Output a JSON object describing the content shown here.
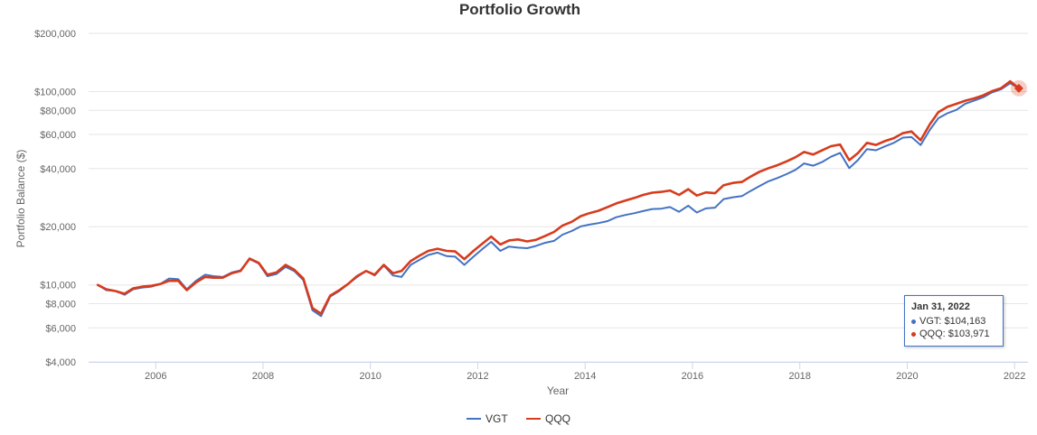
{
  "chart_data": {
    "type": "line",
    "title": "Portfolio Growth",
    "xlabel": "Year",
    "ylabel": "Portfolio Balance ($)",
    "y_scale": "log",
    "ylim": [
      4000,
      200000
    ],
    "xlim": [
      2004.75,
      2022.25
    ],
    "y_ticks": [
      {
        "value": 4000,
        "label": "$4,000"
      },
      {
        "value": 6000,
        "label": "$6,000"
      },
      {
        "value": 8000,
        "label": "$8,000"
      },
      {
        "value": 10000,
        "label": "$10,000"
      },
      {
        "value": 20000,
        "label": "$20,000"
      },
      {
        "value": 40000,
        "label": "$40,000"
      },
      {
        "value": 60000,
        "label": "$60,000"
      },
      {
        "value": 80000,
        "label": "$80,000"
      },
      {
        "value": 100000,
        "label": "$100,000"
      },
      {
        "value": 200000,
        "label": "$200,000"
      }
    ],
    "x_ticks": [
      {
        "value": 2006,
        "label": "2006"
      },
      {
        "value": 2008,
        "label": "2008"
      },
      {
        "value": 2010,
        "label": "2010"
      },
      {
        "value": 2012,
        "label": "2012"
      },
      {
        "value": 2014,
        "label": "2014"
      },
      {
        "value": 2016,
        "label": "2016"
      },
      {
        "value": 2018,
        "label": "2018"
      },
      {
        "value": 2020,
        "label": "2020"
      },
      {
        "value": 2022,
        "label": "2022"
      }
    ],
    "grid": true,
    "legend_position": "bottom",
    "series": [
      {
        "name": "VGT",
        "color": "#4472c4",
        "points": [
          [
            2004.92,
            10000
          ],
          [
            2005.08,
            9400
          ],
          [
            2005.25,
            9300
          ],
          [
            2005.42,
            8900
          ],
          [
            2005.58,
            9500
          ],
          [
            2005.75,
            9700
          ],
          [
            2005.92,
            9800
          ],
          [
            2006.08,
            10100
          ],
          [
            2006.25,
            10800
          ],
          [
            2006.42,
            10700
          ],
          [
            2006.58,
            9500
          ],
          [
            2006.75,
            10500
          ],
          [
            2006.92,
            11300
          ],
          [
            2007.08,
            11100
          ],
          [
            2007.25,
            11000
          ],
          [
            2007.42,
            11600
          ],
          [
            2007.58,
            11900
          ],
          [
            2007.75,
            13600
          ],
          [
            2007.92,
            12900
          ],
          [
            2008.08,
            11100
          ],
          [
            2008.25,
            11400
          ],
          [
            2008.42,
            12400
          ],
          [
            2008.58,
            11800
          ],
          [
            2008.75,
            10600
          ],
          [
            2008.92,
            7400
          ],
          [
            2009.08,
            6900
          ],
          [
            2009.25,
            8700
          ],
          [
            2009.42,
            9300
          ],
          [
            2009.58,
            10100
          ],
          [
            2009.75,
            11000
          ],
          [
            2009.92,
            11800
          ],
          [
            2010.08,
            11200
          ],
          [
            2010.25,
            12600
          ],
          [
            2010.42,
            11200
          ],
          [
            2010.58,
            11000
          ],
          [
            2010.75,
            12700
          ],
          [
            2010.92,
            13500
          ],
          [
            2011.08,
            14300
          ],
          [
            2011.25,
            14700
          ],
          [
            2011.42,
            14100
          ],
          [
            2011.58,
            14000
          ],
          [
            2011.75,
            12700
          ],
          [
            2011.92,
            14000
          ],
          [
            2012.08,
            15300
          ],
          [
            2012.25,
            16700
          ],
          [
            2012.42,
            15000
          ],
          [
            2012.58,
            15800
          ],
          [
            2012.75,
            15600
          ],
          [
            2012.92,
            15500
          ],
          [
            2013.08,
            15900
          ],
          [
            2013.25,
            16500
          ],
          [
            2013.42,
            16900
          ],
          [
            2013.58,
            18200
          ],
          [
            2013.75,
            19000
          ],
          [
            2013.92,
            20100
          ],
          [
            2014.08,
            20500
          ],
          [
            2014.25,
            20900
          ],
          [
            2014.42,
            21400
          ],
          [
            2014.58,
            22400
          ],
          [
            2014.75,
            23000
          ],
          [
            2014.92,
            23500
          ],
          [
            2015.08,
            24100
          ],
          [
            2015.25,
            24700
          ],
          [
            2015.42,
            24800
          ],
          [
            2015.58,
            25300
          ],
          [
            2015.75,
            23900
          ],
          [
            2015.92,
            25700
          ],
          [
            2016.08,
            23700
          ],
          [
            2016.25,
            24900
          ],
          [
            2016.42,
            25100
          ],
          [
            2016.58,
            27800
          ],
          [
            2016.75,
            28400
          ],
          [
            2016.92,
            28800
          ],
          [
            2017.08,
            30600
          ],
          [
            2017.25,
            32500
          ],
          [
            2017.42,
            34400
          ],
          [
            2017.58,
            35700
          ],
          [
            2017.75,
            37400
          ],
          [
            2017.92,
            39400
          ],
          [
            2018.08,
            42500
          ],
          [
            2018.25,
            41400
          ],
          [
            2018.42,
            43300
          ],
          [
            2018.58,
            46000
          ],
          [
            2018.75,
            48200
          ],
          [
            2018.92,
            40200
          ],
          [
            2019.08,
            44200
          ],
          [
            2019.25,
            50400
          ],
          [
            2019.42,
            49700
          ],
          [
            2019.58,
            52000
          ],
          [
            2019.75,
            54300
          ],
          [
            2019.92,
            57800
          ],
          [
            2020.08,
            58200
          ],
          [
            2020.25,
            52900
          ],
          [
            2020.42,
            63300
          ],
          [
            2020.58,
            72800
          ],
          [
            2020.75,
            77300
          ],
          [
            2020.92,
            80500
          ],
          [
            2021.08,
            86500
          ],
          [
            2021.25,
            89900
          ],
          [
            2021.42,
            93500
          ],
          [
            2021.58,
            99000
          ],
          [
            2021.75,
            102800
          ],
          [
            2021.92,
            110500
          ],
          [
            2022.08,
            104163
          ]
        ]
      },
      {
        "name": "QQQ",
        "color": "#d73b1c",
        "points": [
          [
            2004.92,
            10000
          ],
          [
            2005.08,
            9500
          ],
          [
            2005.25,
            9300
          ],
          [
            2005.42,
            9000
          ],
          [
            2005.58,
            9600
          ],
          [
            2005.75,
            9800
          ],
          [
            2005.92,
            9900
          ],
          [
            2006.08,
            10100
          ],
          [
            2006.25,
            10500
          ],
          [
            2006.42,
            10500
          ],
          [
            2006.58,
            9400
          ],
          [
            2006.75,
            10300
          ],
          [
            2006.92,
            11000
          ],
          [
            2007.08,
            10900
          ],
          [
            2007.25,
            10900
          ],
          [
            2007.42,
            11500
          ],
          [
            2007.58,
            11800
          ],
          [
            2007.75,
            13700
          ],
          [
            2007.92,
            13000
          ],
          [
            2008.08,
            11300
          ],
          [
            2008.25,
            11600
          ],
          [
            2008.42,
            12700
          ],
          [
            2008.58,
            12000
          ],
          [
            2008.75,
            10800
          ],
          [
            2008.92,
            7600
          ],
          [
            2009.08,
            7100
          ],
          [
            2009.25,
            8800
          ],
          [
            2009.42,
            9400
          ],
          [
            2009.58,
            10100
          ],
          [
            2009.75,
            11100
          ],
          [
            2009.92,
            11800
          ],
          [
            2010.08,
            11300
          ],
          [
            2010.25,
            12700
          ],
          [
            2010.42,
            11500
          ],
          [
            2010.58,
            11800
          ],
          [
            2010.75,
            13300
          ],
          [
            2010.92,
            14200
          ],
          [
            2011.08,
            15000
          ],
          [
            2011.25,
            15400
          ],
          [
            2011.42,
            15000
          ],
          [
            2011.58,
            14900
          ],
          [
            2011.75,
            13600
          ],
          [
            2011.92,
            15000
          ],
          [
            2012.08,
            16300
          ],
          [
            2012.25,
            17800
          ],
          [
            2012.42,
            16200
          ],
          [
            2012.58,
            17000
          ],
          [
            2012.75,
            17200
          ],
          [
            2012.92,
            16800
          ],
          [
            2013.08,
            17100
          ],
          [
            2013.25,
            17900
          ],
          [
            2013.42,
            18800
          ],
          [
            2013.58,
            20300
          ],
          [
            2013.75,
            21200
          ],
          [
            2013.92,
            22700
          ],
          [
            2014.08,
            23500
          ],
          [
            2014.25,
            24200
          ],
          [
            2014.42,
            25300
          ],
          [
            2014.58,
            26400
          ],
          [
            2014.75,
            27300
          ],
          [
            2014.92,
            28200
          ],
          [
            2015.08,
            29200
          ],
          [
            2015.25,
            30000
          ],
          [
            2015.42,
            30300
          ],
          [
            2015.58,
            30800
          ],
          [
            2015.75,
            29200
          ],
          [
            2015.92,
            31300
          ],
          [
            2016.08,
            29000
          ],
          [
            2016.25,
            30100
          ],
          [
            2016.42,
            29800
          ],
          [
            2016.58,
            32800
          ],
          [
            2016.75,
            33700
          ],
          [
            2016.92,
            34100
          ],
          [
            2017.08,
            36300
          ],
          [
            2017.25,
            38500
          ],
          [
            2017.42,
            40200
          ],
          [
            2017.58,
            41600
          ],
          [
            2017.75,
            43500
          ],
          [
            2017.92,
            45800
          ],
          [
            2018.08,
            48700
          ],
          [
            2018.25,
            47300
          ],
          [
            2018.42,
            49800
          ],
          [
            2018.58,
            52200
          ],
          [
            2018.75,
            53200
          ],
          [
            2018.92,
            44200
          ],
          [
            2019.08,
            48000
          ],
          [
            2019.25,
            54300
          ],
          [
            2019.42,
            53000
          ],
          [
            2019.58,
            55400
          ],
          [
            2019.75,
            57400
          ],
          [
            2019.92,
            61000
          ],
          [
            2020.08,
            62200
          ],
          [
            2020.25,
            56000
          ],
          [
            2020.42,
            67600
          ],
          [
            2020.58,
            78200
          ],
          [
            2020.75,
            83400
          ],
          [
            2020.92,
            86500
          ],
          [
            2021.08,
            89700
          ],
          [
            2021.25,
            92300
          ],
          [
            2021.42,
            95700
          ],
          [
            2021.58,
            100500
          ],
          [
            2021.75,
            104200
          ],
          [
            2021.92,
            113000
          ],
          [
            2022.08,
            103971
          ]
        ]
      }
    ],
    "highlight": {
      "x": 2022.08
    }
  },
  "tooltip": {
    "date": "Jan 31, 2022",
    "rows": [
      {
        "label": "VGT: $104,163",
        "color": "#4472c4"
      },
      {
        "label": "QQQ: $103,971",
        "color": "#d73b1c"
      }
    ]
  }
}
